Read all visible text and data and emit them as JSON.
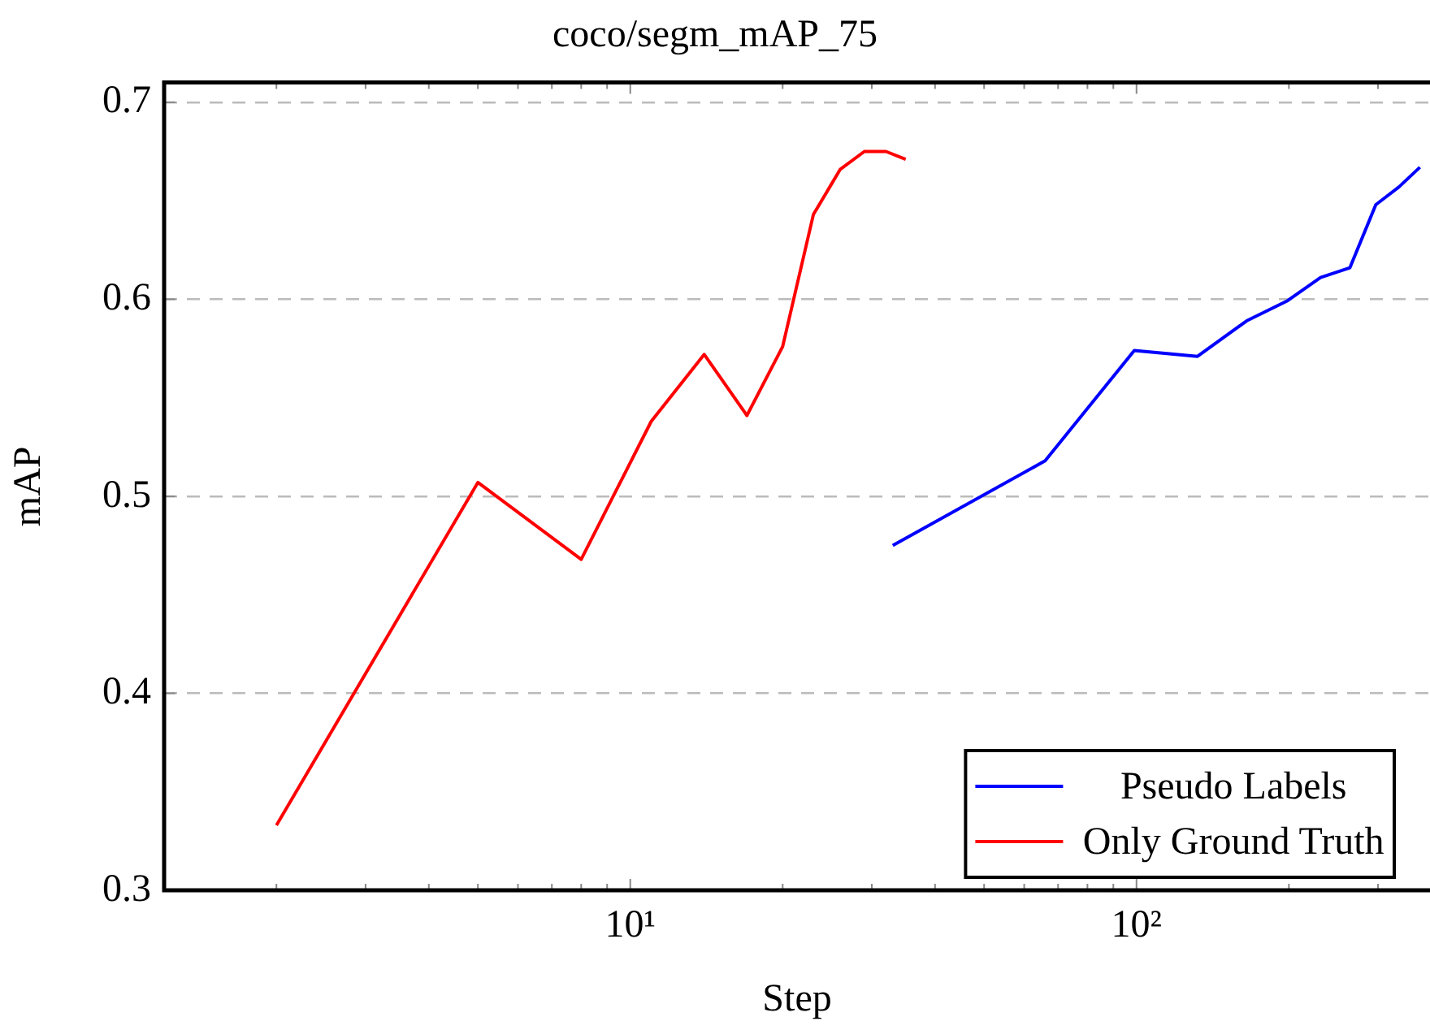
{
  "chart_data": {
    "type": "line",
    "title": "coco/segm_mAP_75",
    "xlabel": "Step",
    "ylabel": "mAP",
    "log": "x",
    "xlim": [
      1.2,
      380
    ],
    "ylim": [
      0.3,
      0.71
    ],
    "xticks": [
      {
        "value": 10,
        "label": "10¹"
      },
      {
        "value": 100,
        "label": "10²"
      }
    ],
    "yticks": [
      0.3,
      0.4,
      0.5,
      0.6,
      0.7
    ],
    "grid": "y",
    "legend": "bottom right",
    "marker": "none",
    "line_style": "solid",
    "series": [
      {
        "name": "Pseudo Labels",
        "color": "#0000ff",
        "x": [
          33,
          66,
          99,
          132,
          165,
          198,
          231,
          264,
          297,
          330,
          363
        ],
        "values": [
          0.475,
          0.518,
          0.574,
          0.571,
          0.589,
          0.599,
          0.611,
          0.616,
          0.648,
          0.657,
          0.667
        ]
      },
      {
        "name": "Only Ground Truth",
        "color": "#ff0000",
        "x": [
          2,
          5,
          8,
          11,
          14,
          17,
          20,
          23,
          26,
          29,
          32,
          35
        ],
        "values": [
          0.333,
          0.507,
          0.468,
          0.538,
          0.572,
          0.541,
          0.576,
          0.643,
          0.666,
          0.675,
          0.675,
          0.671
        ]
      }
    ]
  }
}
